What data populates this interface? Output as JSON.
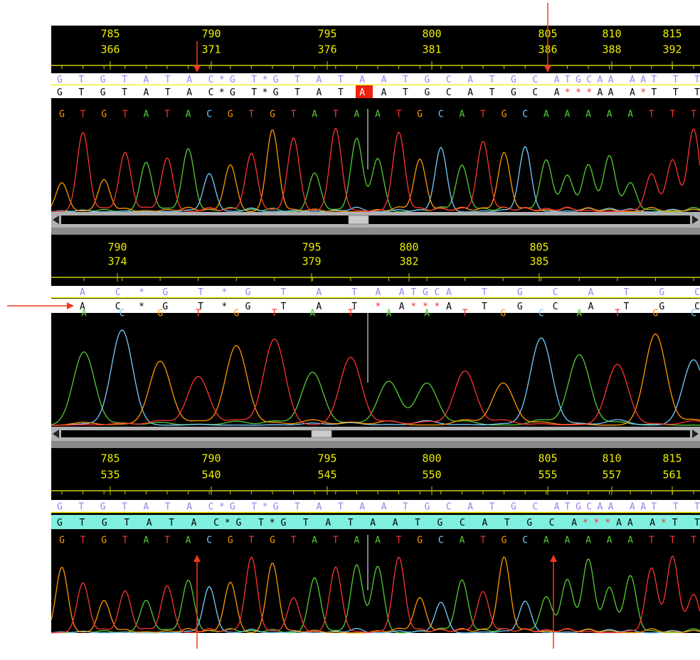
{
  "panels": [
    {
      "ruler": [
        {
          "top": 785,
          "bottom": 366
        },
        {
          "top": 790,
          "bottom": 371
        },
        {
          "top": 795,
          "bottom": 376
        },
        {
          "top": 800,
          "bottom": 381
        },
        {
          "top": 805,
          "bottom": 386
        },
        {
          "top": 810,
          "bottom": 388
        },
        {
          "top": 815,
          "bottom": 392
        }
      ],
      "consensus": [
        {
          "text": "G T G T A T A C*G T*G T A T A A T G C A T G C ATGCAA AAT T T",
          "color": "#9b7fe8"
        }
      ],
      "read": [
        {
          "text": "G T G T A T A C*G T*G T A T ",
          "color": "#000000"
        },
        {
          "text": "A",
          "color": "#ffffff"
        },
        {
          "text": " A T G C A T G C A",
          "color": "#000000"
        },
        {
          "text": "***",
          "color": "#ff2a2a"
        },
        {
          "text": "AA A",
          "color": "#000000"
        },
        {
          "text": "*",
          "color": "#ff2a2a"
        },
        {
          "text": "T T T",
          "color": "#000000"
        }
      ],
      "calls": [
        "G",
        "T",
        "G",
        "T",
        "A",
        "T",
        "A",
        "C",
        "G",
        "T",
        "G",
        "T",
        "A",
        "T",
        "A",
        "A",
        "T",
        "G",
        "C",
        "A",
        "T",
        "G",
        "C",
        "A",
        "A",
        "A",
        "A",
        "A",
        "T",
        "T",
        "T"
      ]
    },
    {
      "ruler": [
        {
          "top": 790,
          "bottom": 374
        },
        {
          "top": 795,
          "bottom": 379
        },
        {
          "top": 800,
          "bottom": 382
        },
        {
          "top": 805,
          "bottom": 385
        }
      ],
      "consensus": [
        {
          "text": "A  C * G  T * G  T  A  T A ATGCA  T  G  C  A  T  G  C",
          "color": "#9b7fe8"
        }
      ],
      "read": [
        {
          "text": "A  C * G  T * G  T  A  T ",
          "color": "#000000"
        },
        {
          "text": "*",
          "color": "#ff2a2a"
        },
        {
          "text": " A",
          "color": "#000000"
        },
        {
          "text": "***",
          "color": "#ff2a2a"
        },
        {
          "text": "A  T  G  C  A  T  G  C",
          "color": "#000000"
        }
      ],
      "calls": [
        "A",
        "C",
        "G",
        "T",
        "G",
        "T",
        "A",
        "T",
        "A",
        "A",
        "T",
        "G",
        "C",
        "A",
        "T",
        "G",
        "C"
      ]
    },
    {
      "ruler": [
        {
          "top": 785,
          "bottom": 535
        },
        {
          "top": 790,
          "bottom": 540
        },
        {
          "top": 795,
          "bottom": 545
        },
        {
          "top": 800,
          "bottom": 550
        },
        {
          "top": 805,
          "bottom": 555
        },
        {
          "top": 810,
          "bottom": 557
        },
        {
          "top": 815,
          "bottom": 561
        }
      ],
      "consensus": [
        {
          "text": "G T G T A T A C*G T*G T A T A A T G C A T G C ATGCAA AAT T T",
          "color": "#9b7fe8"
        }
      ],
      "read": [
        {
          "text": "G T G T A T A C*G T*G T A T A A T G C A T G C A",
          "color": "#000000"
        },
        {
          "text": "***",
          "color": "#ff2a2a"
        },
        {
          "text": "AA A",
          "color": "#000000"
        },
        {
          "text": "*",
          "color": "#ff2a2a"
        },
        {
          "text": "T T",
          "color": "#000000"
        }
      ],
      "calls": [
        "G",
        "T",
        "G",
        "T",
        "A",
        "T",
        "A",
        "C",
        "G",
        "T",
        "G",
        "T",
        "A",
        "T",
        "A",
        "A",
        "T",
        "G",
        "C",
        "A",
        "T",
        "G",
        "C",
        "A",
        "A",
        "A",
        "A",
        "A",
        "T",
        "T",
        "T"
      ]
    }
  ],
  "base_colors": {
    "A": "#55cc33",
    "C": "#77ccff",
    "G": "#ff9900",
    "T": "#ff3333"
  }
}
